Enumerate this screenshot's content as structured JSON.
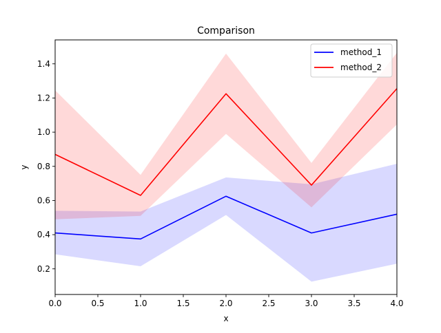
{
  "chart_data": {
    "type": "line",
    "title": "Comparison",
    "xlabel": "x",
    "ylabel": "y",
    "xlim": [
      0,
      4
    ],
    "ylim": [
      0.05,
      1.54
    ],
    "x_ticks": [
      "0.0",
      "0.5",
      "1.0",
      "1.5",
      "2.0",
      "2.5",
      "3.0",
      "3.5",
      "4.0"
    ],
    "y_ticks": [
      "0.2",
      "0.4",
      "0.6",
      "0.8",
      "1.0",
      "1.2",
      "1.4"
    ],
    "x_tick_values": [
      0,
      0.5,
      1,
      1.5,
      2,
      2.5,
      3,
      3.5,
      4
    ],
    "y_tick_values": [
      0.2,
      0.4,
      0.6,
      0.8,
      1.0,
      1.2,
      1.4
    ],
    "grid": false,
    "legend_position": "top-right",
    "x": [
      0,
      1,
      2,
      3,
      4
    ],
    "series": [
      {
        "name": "method_1",
        "color": "#0000ff",
        "band_color": "#0000ff",
        "values": [
          0.41,
          0.375,
          0.625,
          0.41,
          0.52
        ],
        "lower": [
          0.285,
          0.215,
          0.515,
          0.125,
          0.23
        ],
        "upper": [
          0.54,
          0.535,
          0.735,
          0.695,
          0.815
        ]
      },
      {
        "name": "method_2",
        "color": "#ff0000",
        "band_color": "#ff0000",
        "values": [
          0.87,
          0.63,
          1.225,
          0.69,
          1.255
        ],
        "lower": [
          0.49,
          0.51,
          0.99,
          0.56,
          1.045
        ],
        "upper": [
          1.245,
          0.75,
          1.46,
          0.82,
          1.465
        ]
      }
    ]
  }
}
